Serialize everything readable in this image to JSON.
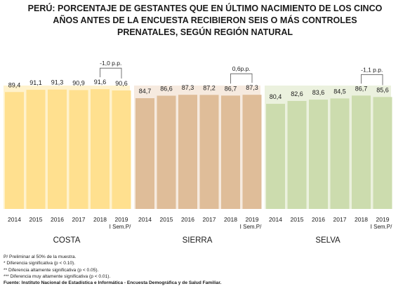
{
  "title_lines": [
    "PERÚ: PORCENTAJE DE GESTANTES QUE EN ÚLTIMO NACIMIENTO DE LOS CINCO",
    "AÑOS ANTES DE LA ENCUESTA RECIBIERON SEIS O MÁS CONTROLES",
    "PRENATALES, SEGÚN REGIÓN NATURAL"
  ],
  "chart_data": {
    "type": "bar",
    "categories": [
      "2014",
      "2015",
      "2016",
      "2017",
      "2018",
      "2019"
    ],
    "last_category_sublabel": "I Sem.P/",
    "ylim": [
      0,
      100
    ],
    "grid": false,
    "groups": [
      {
        "name": "COSTA",
        "values": [
          89.4,
          91.1,
          91.3,
          90.9,
          91.6,
          90.6
        ],
        "labels": [
          "89,4",
          "91,1",
          "91,3",
          "90,9",
          "91,6",
          "90,6"
        ],
        "annotation": "-1,0 p.p.",
        "color": "#FFE08F",
        "panel_color": "#FFF2CC"
      },
      {
        "name": "SIERRA",
        "values": [
          84.7,
          86.6,
          87.3,
          87.2,
          86.7,
          87.3
        ],
        "labels": [
          "84,7",
          "86,6",
          "87,3",
          "87,2",
          "86,7",
          "87,3"
        ],
        "annotation": "0,6p.p.",
        "color": "#DFBD99",
        "panel_color": "#F6EADF"
      },
      {
        "name": "SELVA",
        "values": [
          80.4,
          82.6,
          83.6,
          84.5,
          86.7,
          85.6
        ],
        "labels": [
          "80,4",
          "82,6",
          "83,6",
          "84,5",
          "86,7",
          "85,6"
        ],
        "annotation": "-1,1 p.p.",
        "color": "#CCDCAE",
        "panel_color": "#EBF1DE"
      }
    ]
  },
  "notes": [
    "P/ Preliminar al 50% de la muestra.",
    "*    Diferencia significativa (p < 0.10).",
    "**  Diferencia altamente significativa (p < 0.05).",
    "*** Diferencia muy altamente significativa (p < 0.01)."
  ],
  "source": "Fuente: Instituto Nacional de Estadística e Informática - Encuesta Demográfica y de Salud Familiar."
}
